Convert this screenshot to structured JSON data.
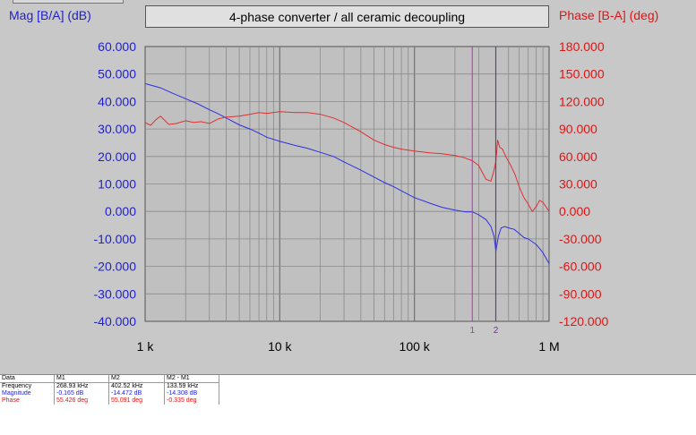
{
  "chart_data": {
    "type": "line",
    "title": "4-phase converter / all ceramic decoupling",
    "x_scale": "log",
    "xlim": [
      1000,
      1000000
    ],
    "x_ticks": [
      {
        "value": 1000,
        "label": "1 k"
      },
      {
        "value": 10000,
        "label": "10 k"
      },
      {
        "value": 100000,
        "label": "100 k"
      },
      {
        "value": 1000000,
        "label": "1 M"
      }
    ],
    "grid": true,
    "y_left": {
      "label": "Mag [B/A] (dB)",
      "lim": [
        -40,
        60
      ],
      "ticks": [
        "-40.000",
        "-30.000",
        "-20.000",
        "-10.000",
        "0.000",
        "10.000",
        "20.000",
        "30.000",
        "40.000",
        "50.000",
        "60.000"
      ],
      "color": "#1f1fd0"
    },
    "y_right": {
      "label": "Phase [B-A] (deg)",
      "lim": [
        -120,
        180
      ],
      "ticks": [
        "-120.000",
        "-90.000",
        "-60.000",
        "-30.000",
        "0.000",
        "30.000",
        "60.000",
        "90.000",
        "120.000",
        "150.000",
        "180.000"
      ],
      "color": "#e01414"
    },
    "series": [
      {
        "axis": "left",
        "color": "#2f2fe0",
        "x": [
          1000,
          1300,
          1600,
          2000,
          2500,
          3000,
          3500,
          4000,
          5000,
          6000,
          7000,
          8000,
          10000,
          13000,
          16000,
          20000,
          25000,
          30000,
          40000,
          50000,
          60000,
          70000,
          80000,
          100000,
          130000,
          160000,
          200000,
          240000,
          268930,
          300000,
          340000,
          370000,
          390000,
          402520,
          420000,
          440000,
          470000,
          500000,
          550000,
          600000,
          650000,
          700000,
          750000,
          800000,
          850000,
          900000,
          1000000
        ],
        "y": [
          46.5,
          45,
          43,
          41,
          39,
          37,
          35.5,
          34,
          31.5,
          30,
          28.5,
          27,
          25.5,
          24,
          23,
          21.5,
          20,
          18,
          15,
          12.5,
          10.5,
          9,
          7.5,
          5,
          3,
          1.5,
          0.5,
          -0.2,
          -0.165,
          -1.2,
          -3,
          -5.5,
          -9,
          -14.472,
          -9,
          -6,
          -5.5,
          -6,
          -6.5,
          -8,
          -9.5,
          -10,
          -11,
          -12,
          -13.5,
          -15,
          -19
        ]
      },
      {
        "axis": "right",
        "color": "#e03030",
        "x": [
          1000,
          1100,
          1200,
          1300,
          1500,
          1700,
          2000,
          2300,
          2600,
          3000,
          3500,
          4000,
          5000,
          6000,
          7000,
          8000,
          10000,
          13000,
          16000,
          20000,
          25000,
          30000,
          40000,
          50000,
          60000,
          70000,
          80000,
          100000,
          130000,
          160000,
          200000,
          230000,
          268930,
          300000,
          340000,
          370000,
          390000,
          402520,
          415000,
          430000,
          450000,
          480000,
          520000,
          560000,
          600000,
          650000,
          700000,
          750000,
          800000,
          850000,
          900000,
          1000000
        ],
        "y": [
          97,
          94,
          100,
          104,
          95,
          96,
          99,
          97,
          98,
          96,
          101,
          103,
          104,
          106,
          108,
          107,
          109,
          108,
          108,
          106,
          102,
          97,
          87,
          78,
          73,
          70,
          68,
          66,
          64,
          63,
          61,
          59,
          55.426,
          50,
          35,
          33,
          45,
          55.091,
          78,
          70,
          68,
          59,
          50,
          40,
          27,
          15,
          8,
          0,
          5,
          12,
          10,
          0
        ]
      }
    ],
    "markers": [
      {
        "label": "1",
        "x": 268930,
        "color": "#d020d0"
      },
      {
        "label": "2",
        "x": 402520,
        "color": "#7a2a9a"
      }
    ]
  },
  "readout": {
    "headers": [
      "Data",
      "M1",
      "M2",
      "M2 - M1"
    ],
    "rows": [
      {
        "label": "Frequency",
        "values": [
          "268.93 kHz",
          "402.52 kHz",
          "133.59 kHz"
        ],
        "color": "#000000"
      },
      {
        "label": "Magnitude",
        "values": [
          "-0.165 dB",
          "-14.472 dB",
          "-14.308 dB"
        ],
        "color": "#1f1fd0"
      },
      {
        "label": "Phase",
        "values": [
          "55.426 deg",
          "55.091 deg",
          "-0.335 deg"
        ],
        "color": "#e01414"
      }
    ]
  }
}
